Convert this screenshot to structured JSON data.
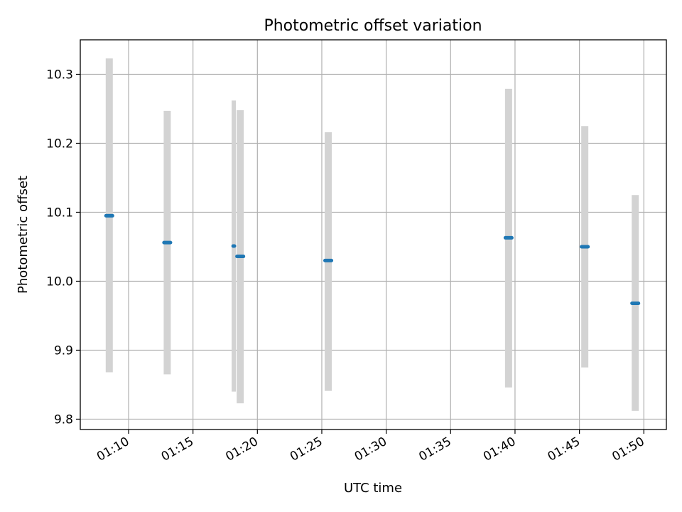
{
  "chart_data": {
    "type": "scatter",
    "title": "Photometric offset variation",
    "xlabel": "UTC time",
    "ylabel": "Photometric offset",
    "grid": true,
    "xlim": [
      "01:06:15",
      "01:51:45"
    ],
    "ylim": [
      9.785,
      10.35
    ],
    "x_ticks": [
      "01:10",
      "01:15",
      "01:20",
      "01:25",
      "01:30",
      "01:35",
      "01:40",
      "01:45",
      "01:50"
    ],
    "y_ticks": [
      9.8,
      9.9,
      10.0,
      10.1,
      10.2,
      10.3
    ],
    "y_tick_labels": [
      "9.8",
      "9.9",
      "10.0",
      "10.1",
      "10.2",
      "10.3"
    ],
    "errorbar_color": "#d3d3d3",
    "point_color": "#1f77b4",
    "points": [
      {
        "start": "01:08:15",
        "end": "01:08:45",
        "y": 10.095,
        "ylow": 9.868,
        "yhigh": 10.323
      },
      {
        "start": "01:12:45",
        "end": "01:13:15",
        "y": 10.056,
        "ylow": 9.865,
        "yhigh": 10.247
      },
      {
        "start": "01:18:07",
        "end": "01:18:13",
        "y": 10.051,
        "ylow": 9.84,
        "yhigh": 10.262
      },
      {
        "start": "01:18:25",
        "end": "01:18:55",
        "y": 10.036,
        "ylow": 9.823,
        "yhigh": 10.248
      },
      {
        "start": "01:25:15",
        "end": "01:25:45",
        "y": 10.03,
        "ylow": 9.841,
        "yhigh": 10.216
      },
      {
        "start": "01:39:15",
        "end": "01:39:45",
        "y": 10.063,
        "ylow": 9.846,
        "yhigh": 10.279
      },
      {
        "start": "01:45:10",
        "end": "01:45:40",
        "y": 10.05,
        "ylow": 9.875,
        "yhigh": 10.225
      },
      {
        "start": "01:49:05",
        "end": "01:49:35",
        "y": 9.968,
        "ylow": 9.812,
        "yhigh": 10.125
      }
    ]
  }
}
